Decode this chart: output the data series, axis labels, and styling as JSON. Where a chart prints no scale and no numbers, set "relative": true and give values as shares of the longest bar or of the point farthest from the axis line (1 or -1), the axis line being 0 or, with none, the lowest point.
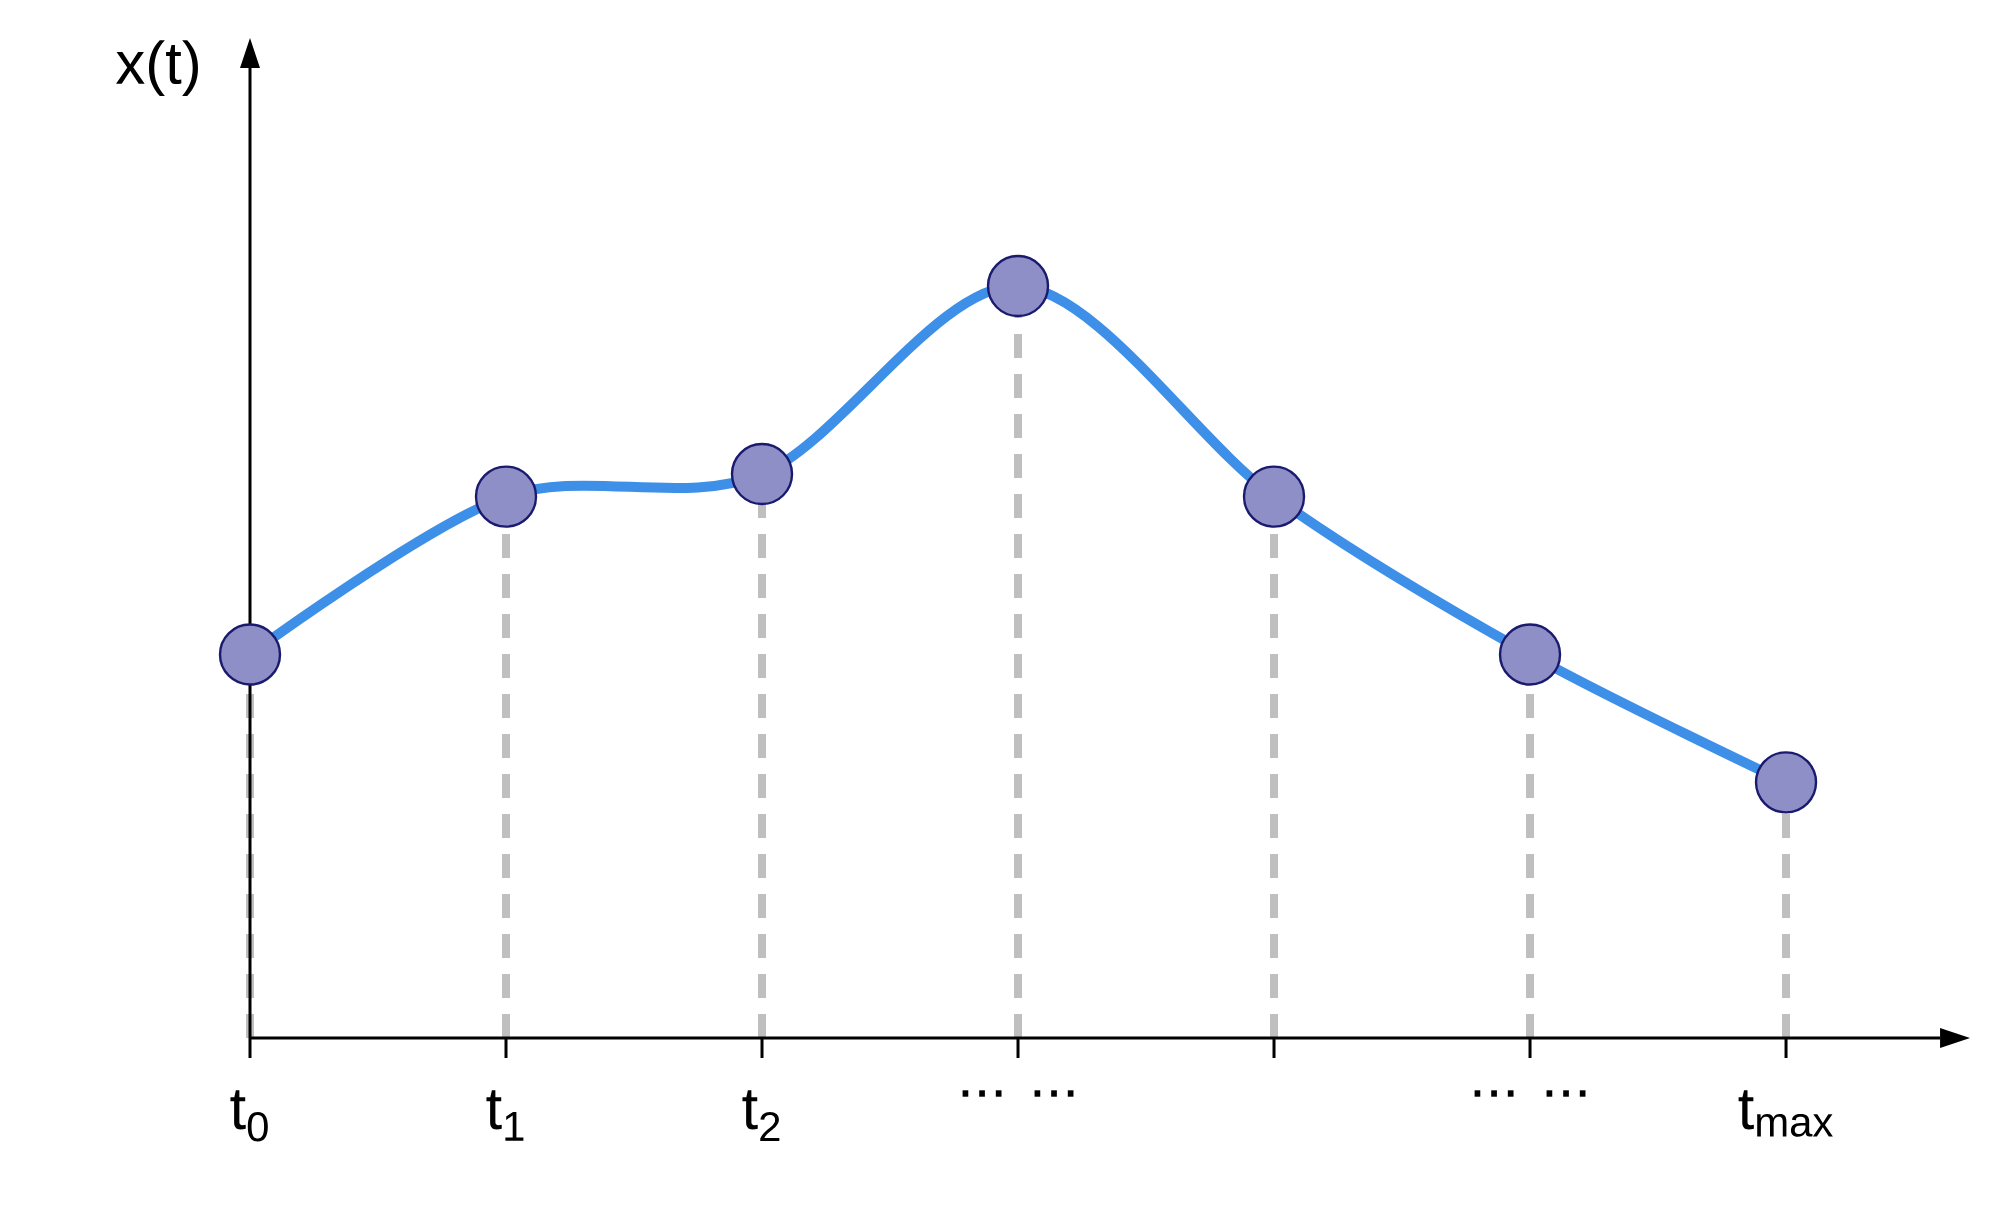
{
  "chart_data": {
    "type": "line",
    "ylabel": "x(t)",
    "relative": true,
    "categories": [
      "t$_{0}$",
      "t$_{1}$",
      "t$_{2}$",
      "... ...",
      null,
      "... ...",
      "t$_{max}$"
    ],
    "series": [
      {
        "color": "#3d8fe8",
        "marker": "none",
        "values": [
          0.51,
          0.72,
          0.75,
          1,
          0.72,
          0.51,
          0.34
        ]
      },
      {
        "type": "lollipop",
        "color": "#8f8fc8",
        "line_style": "dashed",
        "marker": "circle",
        "values": [
          0.51,
          0.72,
          0.75,
          1,
          0.72,
          0.51,
          0.34
        ]
      }
    ]
  }
}
